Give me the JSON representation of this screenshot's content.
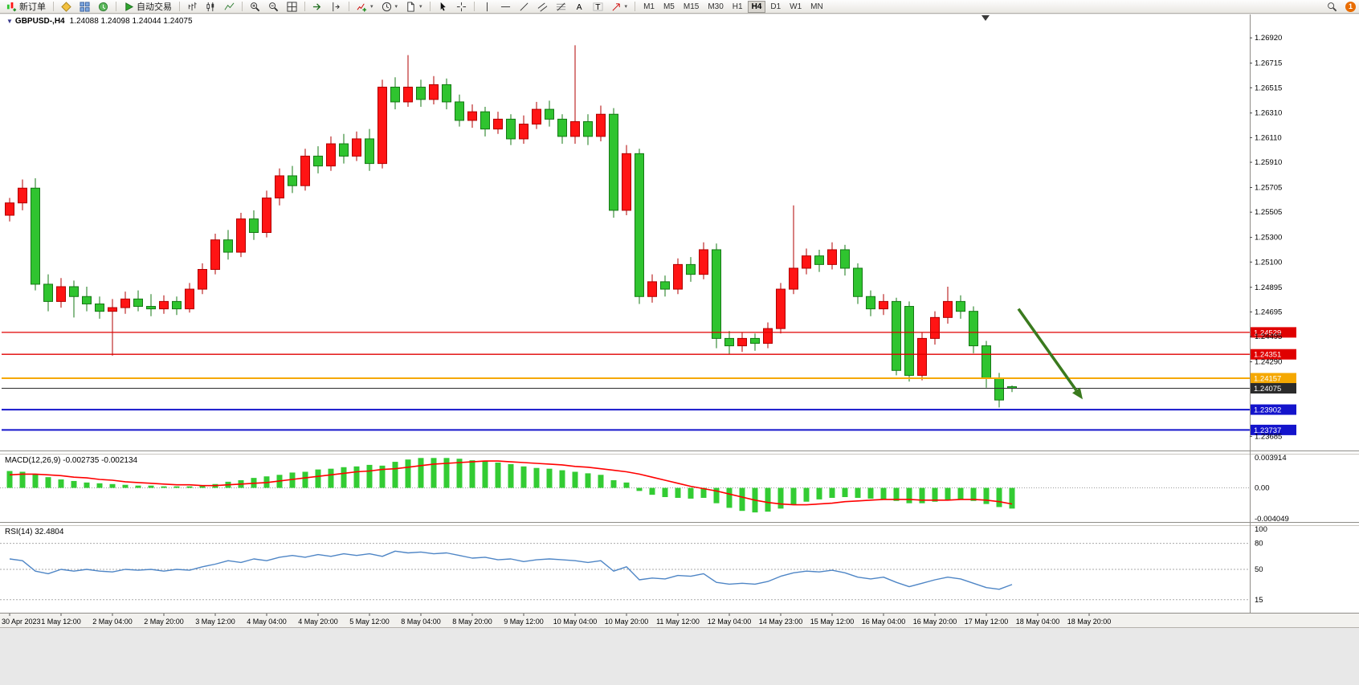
{
  "toolbar": {
    "new_order_label": "新订单",
    "autotrade_label": "自动交易",
    "caret_glyph": "▾",
    "text_tool_glyph": "A",
    "label_tool_glyph": "T",
    "badge_count": "1",
    "timeframes": [
      "M1",
      "M5",
      "M15",
      "M30",
      "H1",
      "H4",
      "D1",
      "W1",
      "MN"
    ],
    "active_timeframe": "H4"
  },
  "chart_header": {
    "collapse_icon": "▼",
    "symbol": "GBPUSD-,H4",
    "ohlc": "1.24088 1.24098 1.24044 1.24075"
  },
  "indicators": {
    "macd_label": "MACD(12,26,9) -0.002735 -0.002134",
    "rsi_label": "RSI(14) 32.4804"
  },
  "axes": {
    "price_labels": [
      "1.26920",
      "1.26715",
      "1.26515",
      "1.26310",
      "1.26110",
      "1.25910",
      "1.25705",
      "1.25505",
      "1.25300",
      "1.25100",
      "1.24895",
      "1.24695",
      "1.24495",
      "1.24290",
      "1.23685"
    ],
    "macd_labels": [
      "0.003914",
      "0.00",
      "-0.004049"
    ],
    "rsi_labels": [
      "100",
      "80",
      "50",
      "15"
    ],
    "time_labels": [
      "30 Apr 2023",
      "1 May 12:00",
      "2 May 04:00",
      "2 May 20:00",
      "3 May 12:00",
      "4 May 04:00",
      "4 May 20:00",
      "5 May 12:00",
      "8 May 04:00",
      "8 May 20:00",
      "9 May 12:00",
      "10 May 04:00",
      "10 May 20:00",
      "11 May 12:00",
      "12 May 04:00",
      "14 May 23:00",
      "15 May 12:00",
      "16 May 04:00",
      "16 May 20:00",
      "17 May 12:00",
      "18 May 04:00",
      "18 May 20:00"
    ]
  },
  "chart_data": [
    {
      "type": "candlestick",
      "title": "GBPUSD-,H4",
      "timeframe": "H4",
      "current_ohlc": {
        "open": 1.24088,
        "high": 1.24098,
        "low": 1.24044,
        "close": 1.24075
      },
      "ylim": [
        1.2357,
        1.2711
      ],
      "up_color": "#B00000",
      "up_fill": "#FF1414",
      "down_color": "#157815",
      "down_fill": "#2FC42F",
      "candles_per_time_label": 4,
      "candles": [
        [
          1.2548,
          1.2562,
          1.2543,
          1.2558
        ],
        [
          1.2558,
          1.2577,
          1.2552,
          1.257
        ],
        [
          1.257,
          1.2578,
          1.2487,
          1.2492
        ],
        [
          1.2492,
          1.25,
          1.247,
          1.2478
        ],
        [
          1.2478,
          1.2497,
          1.2473,
          1.249
        ],
        [
          1.249,
          1.2495,
          1.2465,
          1.2482
        ],
        [
          1.2482,
          1.249,
          1.247,
          1.2476
        ],
        [
          1.2476,
          1.2482,
          1.2464,
          1.247
        ],
        [
          1.247,
          1.248,
          1.2434,
          1.2473
        ],
        [
          1.2473,
          1.2486,
          1.2468,
          1.248
        ],
        [
          1.248,
          1.2487,
          1.247,
          1.2474
        ],
        [
          1.2474,
          1.2484,
          1.2466,
          1.2472
        ],
        [
          1.2472,
          1.2483,
          1.2468,
          1.2478
        ],
        [
          1.2478,
          1.2482,
          1.2467,
          1.2472
        ],
        [
          1.2472,
          1.2493,
          1.2469,
          1.2488
        ],
        [
          1.2488,
          1.2509,
          1.2484,
          1.2504
        ],
        [
          1.2504,
          1.2533,
          1.25,
          1.2528
        ],
        [
          1.2528,
          1.2536,
          1.2512,
          1.2518
        ],
        [
          1.2518,
          1.255,
          1.2514,
          1.2545
        ],
        [
          1.2545,
          1.2552,
          1.2528,
          1.2534
        ],
        [
          1.2534,
          1.2568,
          1.253,
          1.2562
        ],
        [
          1.2562,
          1.2586,
          1.2556,
          1.258
        ],
        [
          1.258,
          1.2588,
          1.2566,
          1.2572
        ],
        [
          1.2572,
          1.2602,
          1.2568,
          1.2596
        ],
        [
          1.2596,
          1.2604,
          1.2582,
          1.2588
        ],
        [
          1.2588,
          1.2612,
          1.2584,
          1.2606
        ],
        [
          1.2606,
          1.2614,
          1.259,
          1.2596
        ],
        [
          1.2596,
          1.2616,
          1.2592,
          1.261
        ],
        [
          1.261,
          1.2618,
          1.2584,
          1.259
        ],
        [
          1.259,
          1.2658,
          1.2586,
          1.2652
        ],
        [
          1.2652,
          1.266,
          1.2634,
          1.264
        ],
        [
          1.264,
          1.2678,
          1.2636,
          1.2652
        ],
        [
          1.2652,
          1.2658,
          1.2636,
          1.2642
        ],
        [
          1.2642,
          1.2661,
          1.2638,
          1.2654
        ],
        [
          1.2654,
          1.2659,
          1.2634,
          1.264
        ],
        [
          1.264,
          1.2646,
          1.262,
          1.2625
        ],
        [
          1.2625,
          1.2638,
          1.2619,
          1.2632
        ],
        [
          1.2632,
          1.2636,
          1.2612,
          1.2618
        ],
        [
          1.2618,
          1.2632,
          1.2614,
          1.2626
        ],
        [
          1.2626,
          1.263,
          1.2605,
          1.261
        ],
        [
          1.261,
          1.2629,
          1.2606,
          1.2622
        ],
        [
          1.2622,
          1.264,
          1.2618,
          1.2634
        ],
        [
          1.2634,
          1.2641,
          1.262,
          1.2626
        ],
        [
          1.2626,
          1.263,
          1.2606,
          1.2612
        ],
        [
          1.2612,
          1.2686,
          1.2606,
          1.2624
        ],
        [
          1.2624,
          1.263,
          1.2605,
          1.2612
        ],
        [
          1.2612,
          1.2637,
          1.2608,
          1.263
        ],
        [
          1.263,
          1.2635,
          1.2546,
          1.2552
        ],
        [
          1.2552,
          1.2605,
          1.2548,
          1.2598
        ],
        [
          1.2598,
          1.2602,
          1.2476,
          1.2482
        ],
        [
          1.2482,
          1.25,
          1.2477,
          1.2494
        ],
        [
          1.2494,
          1.2499,
          1.2482,
          1.2488
        ],
        [
          1.2488,
          1.2513,
          1.2484,
          1.2508
        ],
        [
          1.2508,
          1.2514,
          1.2494,
          1.25
        ],
        [
          1.25,
          1.2526,
          1.2496,
          1.252
        ],
        [
          1.252,
          1.2525,
          1.244,
          1.2448
        ],
        [
          1.2448,
          1.2454,
          1.2435,
          1.2442
        ],
        [
          1.2442,
          1.2453,
          1.2437,
          1.2448
        ],
        [
          1.2448,
          1.2452,
          1.2438,
          1.2444
        ],
        [
          1.2444,
          1.2461,
          1.244,
          1.2456
        ],
        [
          1.2456,
          1.2493,
          1.2452,
          1.2488
        ],
        [
          1.2488,
          1.2556,
          1.2484,
          1.2505
        ],
        [
          1.2505,
          1.2521,
          1.25,
          1.2515
        ],
        [
          1.2515,
          1.252,
          1.2502,
          1.2508
        ],
        [
          1.2508,
          1.2526,
          1.2504,
          1.252
        ],
        [
          1.252,
          1.2524,
          1.2499,
          1.2505
        ],
        [
          1.2505,
          1.2509,
          1.2476,
          1.2482
        ],
        [
          1.2482,
          1.2487,
          1.2466,
          1.2472
        ],
        [
          1.2472,
          1.2484,
          1.2467,
          1.2478
        ],
        [
          1.2478,
          1.2481,
          1.2418,
          1.2422
        ],
        [
          1.2474,
          1.2478,
          1.2413,
          1.2418
        ],
        [
          1.2418,
          1.2453,
          1.2414,
          1.2448
        ],
        [
          1.2448,
          1.247,
          1.2443,
          1.2465
        ],
        [
          1.2465,
          1.249,
          1.246,
          1.2478
        ],
        [
          1.2478,
          1.2483,
          1.2464,
          1.247
        ],
        [
          1.247,
          1.2474,
          1.2436,
          1.2442
        ],
        [
          1.2442,
          1.2446,
          1.2408,
          1.2416
        ],
        [
          1.2416,
          1.242,
          1.2392,
          1.2398
        ],
        [
          1.24088,
          1.24098,
          1.24044,
          1.24075
        ]
      ],
      "hlines": [
        {
          "label": "1.24529",
          "price": 1.24529,
          "color": "#E00000",
          "width": 1.3
        },
        {
          "label": "1.24351",
          "price": 1.24351,
          "color": "#E00000",
          "width": 1.3
        },
        {
          "label": "1.24157",
          "price": 1.24157,
          "color": "#F5A800",
          "width": 2
        },
        {
          "label": "1.24075",
          "price": 1.24075,
          "color": "#2b2b2b",
          "width": 1,
          "is_current_price": true
        },
        {
          "label": "1.23902",
          "price": 1.23902,
          "color": "#1414CC",
          "width": 2
        },
        {
          "label": "1.23737",
          "price": 1.23737,
          "color": "#1414CC",
          "width": 2
        }
      ],
      "annotations": [
        {
          "type": "arrow",
          "from_index": 78.5,
          "from_price": 1.2472,
          "to_index": 83.5,
          "to_price": 1.23985,
          "color": "#3A7A1E",
          "width": 3.5
        }
      ]
    },
    {
      "type": "bar",
      "title": "MACD(12,26,9)",
      "main_value": -0.002735,
      "signal_value": -0.002134,
      "ylim": [
        -0.004049,
        0.003914
      ],
      "bar_color": "#33CC33",
      "signal_color": "#FF0000",
      "histogram": [
        0.0022,
        0.0021,
        0.0018,
        0.0014,
        0.0011,
        0.0009,
        0.0007,
        0.0006,
        0.0005,
        0.0004,
        0.0003,
        0.0003,
        0.0002,
        0.0002,
        0.0002,
        0.0003,
        0.0005,
        0.0008,
        0.001,
        0.0013,
        0.0015,
        0.0017,
        0.002,
        0.0021,
        0.0024,
        0.0025,
        0.0027,
        0.0028,
        0.003,
        0.0029,
        0.0034,
        0.0037,
        0.0039,
        0.0039,
        0.0039,
        0.0038,
        0.0036,
        0.0035,
        0.0033,
        0.0031,
        0.0028,
        0.0026,
        0.0025,
        0.0023,
        0.0021,
        0.0019,
        0.0017,
        0.001,
        0.0007,
        -0.0004,
        -0.0009,
        -0.0012,
        -0.0013,
        -0.0014,
        -0.0013,
        -0.002,
        -0.0026,
        -0.003,
        -0.0032,
        -0.0031,
        -0.0027,
        -0.0022,
        -0.0018,
        -0.0015,
        -0.0013,
        -0.0012,
        -0.0013,
        -0.0014,
        -0.0015,
        -0.0017,
        -0.002,
        -0.002,
        -0.0018,
        -0.0016,
        -0.0015,
        -0.0017,
        -0.0021,
        -0.0025,
        -0.0027
      ],
      "signal": [
        0.0017,
        0.0018,
        0.0018,
        0.0017,
        0.0016,
        0.0014,
        0.0013,
        0.0011,
        0.001,
        0.0008,
        0.0007,
        0.0006,
        0.0005,
        0.0004,
        0.0004,
        0.0003,
        0.0003,
        0.0004,
        0.0005,
        0.0006,
        0.0007,
        0.0009,
        0.0011,
        0.0013,
        0.0015,
        0.0017,
        0.0019,
        0.0021,
        0.0022,
        0.0024,
        0.0025,
        0.0027,
        0.0029,
        0.0031,
        0.0032,
        0.0033,
        0.0034,
        0.0035,
        0.0035,
        0.0034,
        0.0033,
        0.0032,
        0.0031,
        0.003,
        0.0028,
        0.0027,
        0.0025,
        0.0023,
        0.0021,
        0.0018,
        0.0014,
        0.001,
        0.0006,
        0.0002,
        -0.0001,
        -0.0004,
        -0.0008,
        -0.0012,
        -0.0016,
        -0.0019,
        -0.0021,
        -0.0022,
        -0.0022,
        -0.0021,
        -0.002,
        -0.0018,
        -0.0017,
        -0.0016,
        -0.0015,
        -0.0015,
        -0.0015,
        -0.0016,
        -0.0016,
        -0.0016,
        -0.0015,
        -0.0015,
        -0.0016,
        -0.0018,
        -0.0021
      ]
    },
    {
      "type": "line",
      "title": "RSI(14)",
      "current": 32.4804,
      "ylim": [
        0,
        100
      ],
      "levels": [
        80,
        50,
        15
      ],
      "line_color": "#4F86C6",
      "values": [
        62,
        60,
        48,
        45,
        50,
        48,
        50,
        48,
        47,
        50,
        49,
        50,
        48,
        50,
        49,
        53,
        56,
        60,
        58,
        62,
        60,
        64,
        66,
        64,
        67,
        65,
        68,
        66,
        68,
        65,
        71,
        69,
        70,
        68,
        69,
        66,
        63,
        64,
        61,
        62,
        59,
        61,
        62,
        61,
        60,
        58,
        60,
        48,
        53,
        38,
        40,
        39,
        43,
        42,
        45,
        35,
        33,
        34,
        33,
        36,
        42,
        46,
        48,
        47,
        49,
        46,
        41,
        39,
        41,
        35,
        30,
        34,
        38,
        41,
        39,
        34,
        29,
        27,
        32.48
      ]
    }
  ]
}
